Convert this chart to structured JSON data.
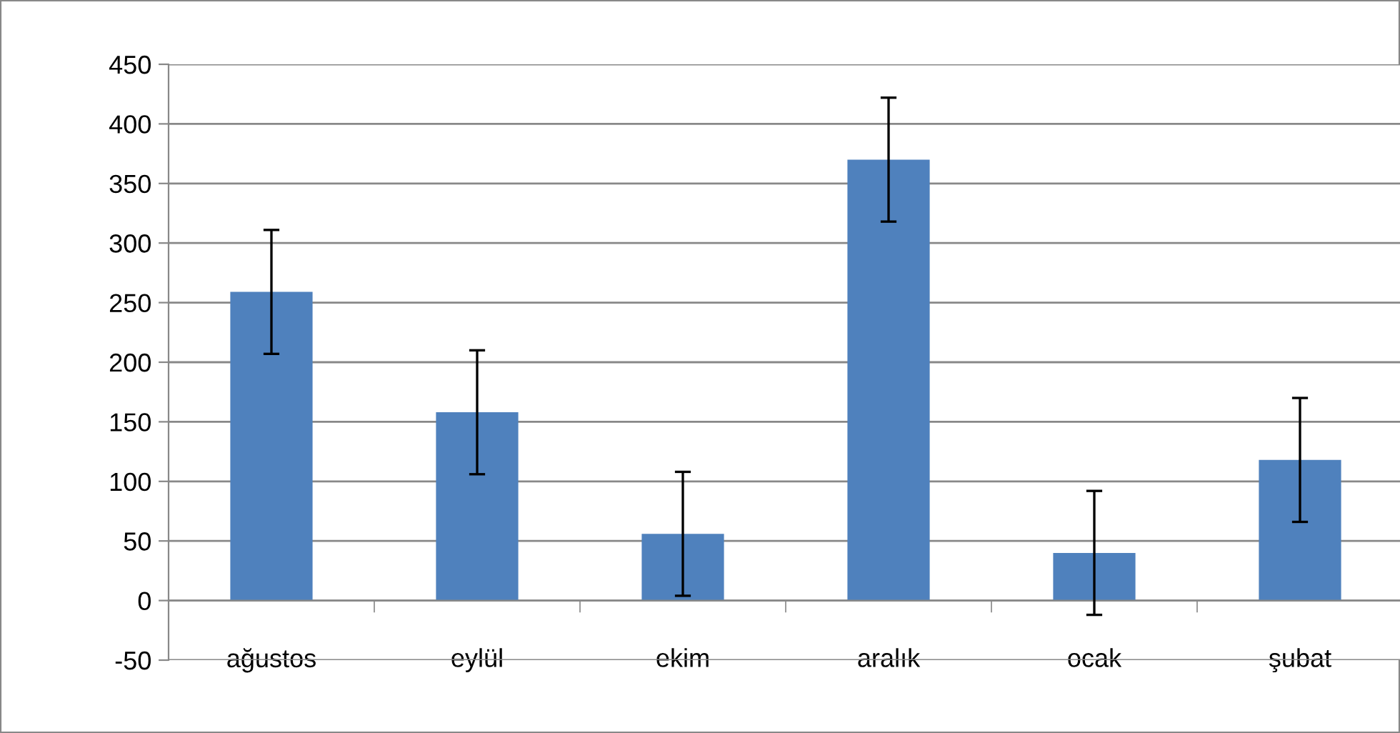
{
  "chart_data": {
    "type": "bar",
    "categories": [
      "ağustos",
      "eylül",
      "ekim",
      "aralık",
      "ocak",
      "şubat"
    ],
    "values": [
      259,
      158,
      56,
      370,
      40,
      118
    ],
    "errors": [
      52,
      52,
      52,
      52,
      52,
      52
    ],
    "color": "#4f81bd",
    "ylim": [
      -50,
      450
    ],
    "yticks": [
      -50,
      0,
      50,
      100,
      150,
      200,
      250,
      300,
      350,
      400,
      450
    ],
    "grid": "y",
    "legend": false
  }
}
